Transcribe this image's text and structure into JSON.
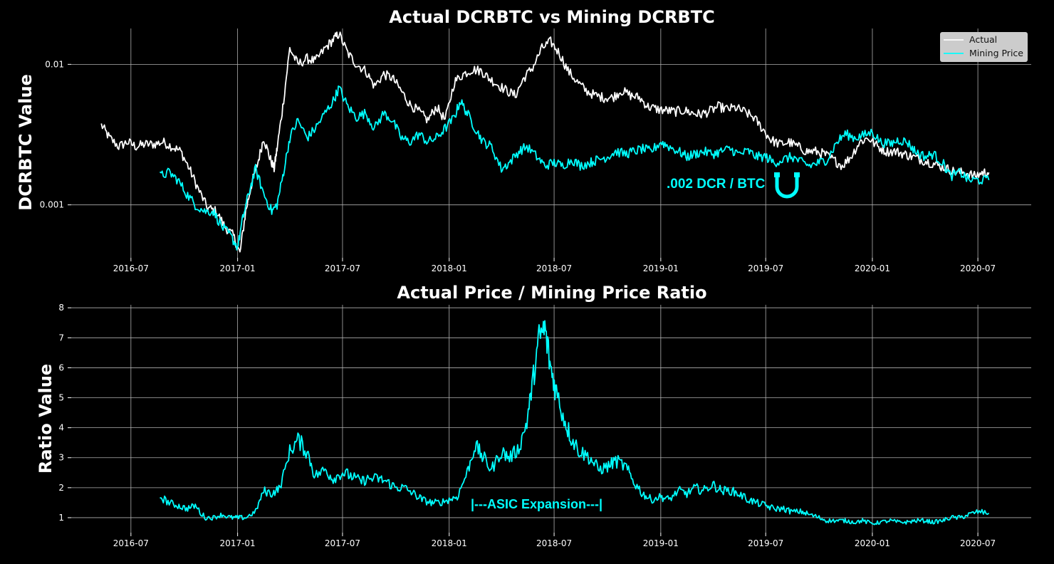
{
  "chart_data": [
    {
      "type": "line",
      "title": "Actual DCRBTC vs Mining DCRBTC",
      "ylabel": "DCRBTC Value",
      "xlabel": "",
      "yscale": "log",
      "ylim": [
        0.00042,
        0.018
      ],
      "xlim": [
        "2016-03-20",
        "2020-10-01"
      ],
      "x_ticks": [
        "2016-07",
        "2017-01",
        "2017-07",
        "2018-01",
        "2018-07",
        "2019-01",
        "2019-07",
        "2020-01",
        "2020-07"
      ],
      "y_ticks": [
        0.001,
        0.01
      ],
      "y_tick_labels": [
        "0.001",
        "0.01"
      ],
      "grid": true,
      "legend": "top-right",
      "series": [
        {
          "name": "Actual",
          "color": "#ffffff",
          "x": [
            "2016-05-11",
            "2016-05-25",
            "2016-06-10",
            "2016-06-25",
            "2016-07-10",
            "2016-07-25",
            "2016-08-10",
            "2016-08-25",
            "2016-09-10",
            "2016-09-25",
            "2016-10-10",
            "2016-10-25",
            "2016-11-10",
            "2016-11-25",
            "2016-12-10",
            "2016-12-25",
            "2017-01-05",
            "2017-01-15",
            "2017-01-25",
            "2017-02-05",
            "2017-02-15",
            "2017-02-25",
            "2017-03-05",
            "2017-03-10",
            "2017-03-20",
            "2017-04-01",
            "2017-04-15",
            "2017-05-01",
            "2017-05-15",
            "2017-06-01",
            "2017-06-15",
            "2017-06-25",
            "2017-07-10",
            "2017-07-25",
            "2017-08-10",
            "2017-08-25",
            "2017-09-10",
            "2017-09-25",
            "2017-10-10",
            "2017-10-25",
            "2017-11-10",
            "2017-11-25",
            "2017-12-10",
            "2017-12-25",
            "2018-01-10",
            "2018-01-25",
            "2018-02-10",
            "2018-02-25",
            "2018-03-10",
            "2018-03-25",
            "2018-04-10",
            "2018-04-25",
            "2018-05-10",
            "2018-05-25",
            "2018-06-10",
            "2018-06-25",
            "2018-07-10",
            "2018-07-25",
            "2018-08-10",
            "2018-08-25",
            "2018-09-10",
            "2018-09-25",
            "2018-10-10",
            "2018-10-25",
            "2018-11-10",
            "2018-11-25",
            "2018-12-10",
            "2018-12-25",
            "2019-01-10",
            "2019-01-25",
            "2019-02-10",
            "2019-02-25",
            "2019-03-10",
            "2019-03-25",
            "2019-04-10",
            "2019-04-25",
            "2019-05-10",
            "2019-05-25",
            "2019-06-10",
            "2019-06-25",
            "2019-07-10",
            "2019-07-25",
            "2019-08-10",
            "2019-08-25",
            "2019-09-10",
            "2019-09-25",
            "2019-10-10",
            "2019-10-25",
            "2019-11-10",
            "2019-11-25",
            "2019-12-10",
            "2019-12-25",
            "2020-01-10",
            "2020-01-25",
            "2020-02-10",
            "2020-02-25",
            "2020-03-10",
            "2020-03-25",
            "2020-04-10",
            "2020-04-25",
            "2020-05-10",
            "2020-05-25",
            "2020-06-10",
            "2020-06-25",
            "2020-07-10",
            "2020-07-20"
          ],
          "y": [
            0.0037,
            0.003,
            0.0026,
            0.0028,
            0.0026,
            0.0027,
            0.0027,
            0.0028,
            0.0026,
            0.0024,
            0.0018,
            0.0013,
            0.00095,
            0.0009,
            0.0007,
            0.0006,
            0.00045,
            0.0009,
            0.0014,
            0.002,
            0.003,
            0.0022,
            0.0018,
            0.0025,
            0.005,
            0.013,
            0.01,
            0.011,
            0.0105,
            0.013,
            0.015,
            0.0165,
            0.012,
            0.01,
            0.009,
            0.007,
            0.0085,
            0.008,
            0.0065,
            0.0052,
            0.0046,
            0.004,
            0.005,
            0.004,
            0.0075,
            0.0085,
            0.0092,
            0.009,
            0.008,
            0.0072,
            0.0065,
            0.006,
            0.008,
            0.0095,
            0.013,
            0.0145,
            0.012,
            0.009,
            0.0075,
            0.0065,
            0.006,
            0.0058,
            0.0058,
            0.0065,
            0.006,
            0.0058,
            0.005,
            0.0048,
            0.0047,
            0.0046,
            0.0047,
            0.0045,
            0.0044,
            0.0046,
            0.005,
            0.0048,
            0.0049,
            0.0046,
            0.0042,
            0.0035,
            0.0029,
            0.0027,
            0.0028,
            0.0026,
            0.0024,
            0.0024,
            0.0023,
            0.0021,
            0.0019,
            0.0022,
            0.0028,
            0.003,
            0.0026,
            0.0024,
            0.0024,
            0.0023,
            0.0022,
            0.0021,
            0.002,
            0.0019,
            0.0018,
            0.0017,
            0.0017,
            0.0016,
            0.0017,
            0.0017
          ]
        },
        {
          "name": "Mining Price",
          "color": "#00ffff",
          "x": [
            "2016-08-20",
            "2016-09-05",
            "2016-09-20",
            "2016-10-05",
            "2016-10-20",
            "2016-11-05",
            "2016-11-20",
            "2016-12-05",
            "2016-12-20",
            "2017-01-01",
            "2017-01-10",
            "2017-01-20",
            "2017-02-01",
            "2017-02-15",
            "2017-03-01",
            "2017-03-10",
            "2017-03-20",
            "2017-04-01",
            "2017-04-15",
            "2017-05-01",
            "2017-05-15",
            "2017-06-01",
            "2017-06-15",
            "2017-06-25",
            "2017-07-10",
            "2017-07-25",
            "2017-08-10",
            "2017-08-25",
            "2017-09-10",
            "2017-09-25",
            "2017-10-10",
            "2017-10-25",
            "2017-11-10",
            "2017-11-25",
            "2017-12-10",
            "2017-12-25",
            "2018-01-10",
            "2018-01-20",
            "2018-02-01",
            "2018-02-15",
            "2018-03-01",
            "2018-03-15",
            "2018-04-01",
            "2018-04-15",
            "2018-05-01",
            "2018-05-15",
            "2018-06-01",
            "2018-06-15",
            "2018-07-01",
            "2018-07-15",
            "2018-08-01",
            "2018-08-15",
            "2018-09-01",
            "2018-09-15",
            "2018-10-01",
            "2018-10-15",
            "2018-11-01",
            "2018-11-15",
            "2018-12-01",
            "2018-12-15",
            "2019-01-01",
            "2019-01-15",
            "2019-02-01",
            "2019-02-15",
            "2019-03-01",
            "2019-03-15",
            "2019-04-01",
            "2019-04-15",
            "2019-05-01",
            "2019-05-15",
            "2019-06-01",
            "2019-06-15",
            "2019-07-01",
            "2019-07-15",
            "2019-08-01",
            "2019-08-15",
            "2019-09-01",
            "2019-09-15",
            "2019-10-01",
            "2019-10-15",
            "2019-11-01",
            "2019-11-15",
            "2019-12-01",
            "2019-12-15",
            "2020-01-01",
            "2020-01-15",
            "2020-02-01",
            "2020-02-15",
            "2020-03-01",
            "2020-03-15",
            "2020-04-01",
            "2020-04-15",
            "2020-05-01",
            "2020-05-15",
            "2020-06-01",
            "2020-06-15",
            "2020-07-01",
            "2020-07-20"
          ],
          "y": [
            0.0016,
            0.0017,
            0.0015,
            0.0012,
            0.001,
            0.0009,
            0.0009,
            0.0007,
            0.0006,
            0.0005,
            0.0008,
            0.0012,
            0.0018,
            0.0012,
            0.0009,
            0.001,
            0.0016,
            0.003,
            0.004,
            0.003,
            0.0035,
            0.0045,
            0.0055,
            0.0068,
            0.005,
            0.0042,
            0.0045,
            0.0035,
            0.0045,
            0.004,
            0.003,
            0.0028,
            0.0032,
            0.0028,
            0.003,
            0.0035,
            0.0042,
            0.0055,
            0.0045,
            0.0035,
            0.0028,
            0.0026,
            0.0018,
            0.002,
            0.0024,
            0.0026,
            0.0022,
            0.0019,
            0.002,
            0.0019,
            0.0021,
            0.0019,
            0.002,
            0.0021,
            0.0022,
            0.0024,
            0.0023,
            0.0024,
            0.0025,
            0.0024,
            0.0028,
            0.0026,
            0.0024,
            0.0022,
            0.0023,
            0.0024,
            0.0023,
            0.0024,
            0.0025,
            0.0023,
            0.0024,
            0.0022,
            0.0022,
            0.002,
            0.0021,
            0.0022,
            0.002,
            0.0019,
            0.002,
            0.0021,
            0.0028,
            0.0032,
            0.003,
            0.0031,
            0.0033,
            0.0028,
            0.0027,
            0.0029,
            0.0028,
            0.0024,
            0.0022,
            0.0023,
            0.002,
            0.0016,
            0.0017,
            0.0015,
            0.0015,
            0.0015
          ]
        }
      ],
      "annotation": {
        "text": ".002 DCR / BTC",
        "color": "#00ffff"
      }
    },
    {
      "type": "line",
      "title": "Actual Price / Mining Price Ratio",
      "ylabel": "Ratio Value",
      "xlabel": "",
      "ylim": [
        0.5,
        8.1
      ],
      "xlim": [
        "2016-03-20",
        "2020-10-01"
      ],
      "x_ticks": [
        "2016-07",
        "2017-01",
        "2017-07",
        "2018-01",
        "2018-07",
        "2019-01",
        "2019-07",
        "2020-01",
        "2020-07"
      ],
      "y_ticks": [
        1,
        2,
        3,
        4,
        5,
        6,
        7,
        8
      ],
      "grid": true,
      "series": [
        {
          "color": "#00ffff",
          "x": [
            "2016-08-20",
            "2016-09-05",
            "2016-09-20",
            "2016-10-05",
            "2016-10-20",
            "2016-11-05",
            "2016-11-20",
            "2016-12-05",
            "2016-12-20",
            "2017-01-01",
            "2017-01-15",
            "2017-02-01",
            "2017-02-15",
            "2017-03-01",
            "2017-03-15",
            "2017-04-01",
            "2017-04-15",
            "2017-05-01",
            "2017-05-15",
            "2017-06-01",
            "2017-06-15",
            "2017-07-01",
            "2017-07-15",
            "2017-08-01",
            "2017-08-15",
            "2017-09-01",
            "2017-09-15",
            "2017-10-01",
            "2017-10-15",
            "2017-11-01",
            "2017-11-15",
            "2017-12-01",
            "2017-12-15",
            "2018-01-01",
            "2018-01-15",
            "2018-02-01",
            "2018-02-15",
            "2018-03-01",
            "2018-03-15",
            "2018-04-01",
            "2018-04-15",
            "2018-05-01",
            "2018-05-15",
            "2018-05-25",
            "2018-06-05",
            "2018-06-15",
            "2018-06-25",
            "2018-07-05",
            "2018-07-20",
            "2018-08-01",
            "2018-08-15",
            "2018-09-01",
            "2018-09-15",
            "2018-10-01",
            "2018-10-15",
            "2018-11-01",
            "2018-11-15",
            "2018-12-01",
            "2018-12-15",
            "2019-01-01",
            "2019-01-15",
            "2019-02-01",
            "2019-02-15",
            "2019-03-01",
            "2019-03-15",
            "2019-04-01",
            "2019-04-15",
            "2019-05-01",
            "2019-05-15",
            "2019-06-01",
            "2019-06-15",
            "2019-07-01",
            "2019-07-15",
            "2019-08-01",
            "2019-08-15",
            "2019-09-01",
            "2019-09-15",
            "2019-10-01",
            "2019-10-15",
            "2019-11-01",
            "2019-11-15",
            "2019-12-01",
            "2019-12-15",
            "2020-01-01",
            "2020-01-15",
            "2020-02-01",
            "2020-02-15",
            "2020-03-01",
            "2020-03-15",
            "2020-04-01",
            "2020-04-15",
            "2020-05-01",
            "2020-05-15",
            "2020-06-01",
            "2020-06-15",
            "2020-07-01",
            "2020-07-20"
          ],
          "y": [
            1.7,
            1.5,
            1.4,
            1.3,
            1.4,
            1.0,
            1.0,
            1.1,
            1.0,
            1.0,
            1.0,
            1.2,
            1.9,
            1.8,
            2.0,
            3.2,
            3.6,
            3.2,
            2.4,
            2.6,
            2.3,
            2.5,
            2.4,
            2.2,
            2.3,
            2.3,
            2.2,
            2.0,
            2.0,
            1.8,
            1.6,
            1.5,
            1.5,
            1.6,
            1.7,
            2.5,
            3.4,
            3.0,
            2.6,
            3.2,
            3.0,
            3.3,
            4.2,
            5.5,
            7.0,
            7.3,
            6.0,
            5.2,
            4.2,
            3.6,
            3.2,
            3.0,
            2.6,
            2.7,
            2.9,
            2.7,
            2.2,
            1.8,
            1.6,
            1.7,
            1.6,
            1.9,
            1.8,
            2.0,
            1.9,
            2.1,
            1.9,
            1.9,
            1.8,
            1.6,
            1.5,
            1.4,
            1.3,
            1.3,
            1.2,
            1.2,
            1.1,
            1.0,
            0.9,
            0.9,
            0.9,
            0.85,
            0.9,
            0.8,
            0.85,
            0.9,
            0.85,
            0.85,
            0.9,
            0.9,
            0.85,
            0.9,
            1.0,
            1.0,
            1.1,
            1.2,
            1.15
          ]
        }
      ],
      "annotation": {
        "text": "|---ASIC Expansion---|",
        "color": "#00ffff"
      }
    }
  ],
  "legend_entries": [
    "Actual",
    "Mining Price"
  ]
}
